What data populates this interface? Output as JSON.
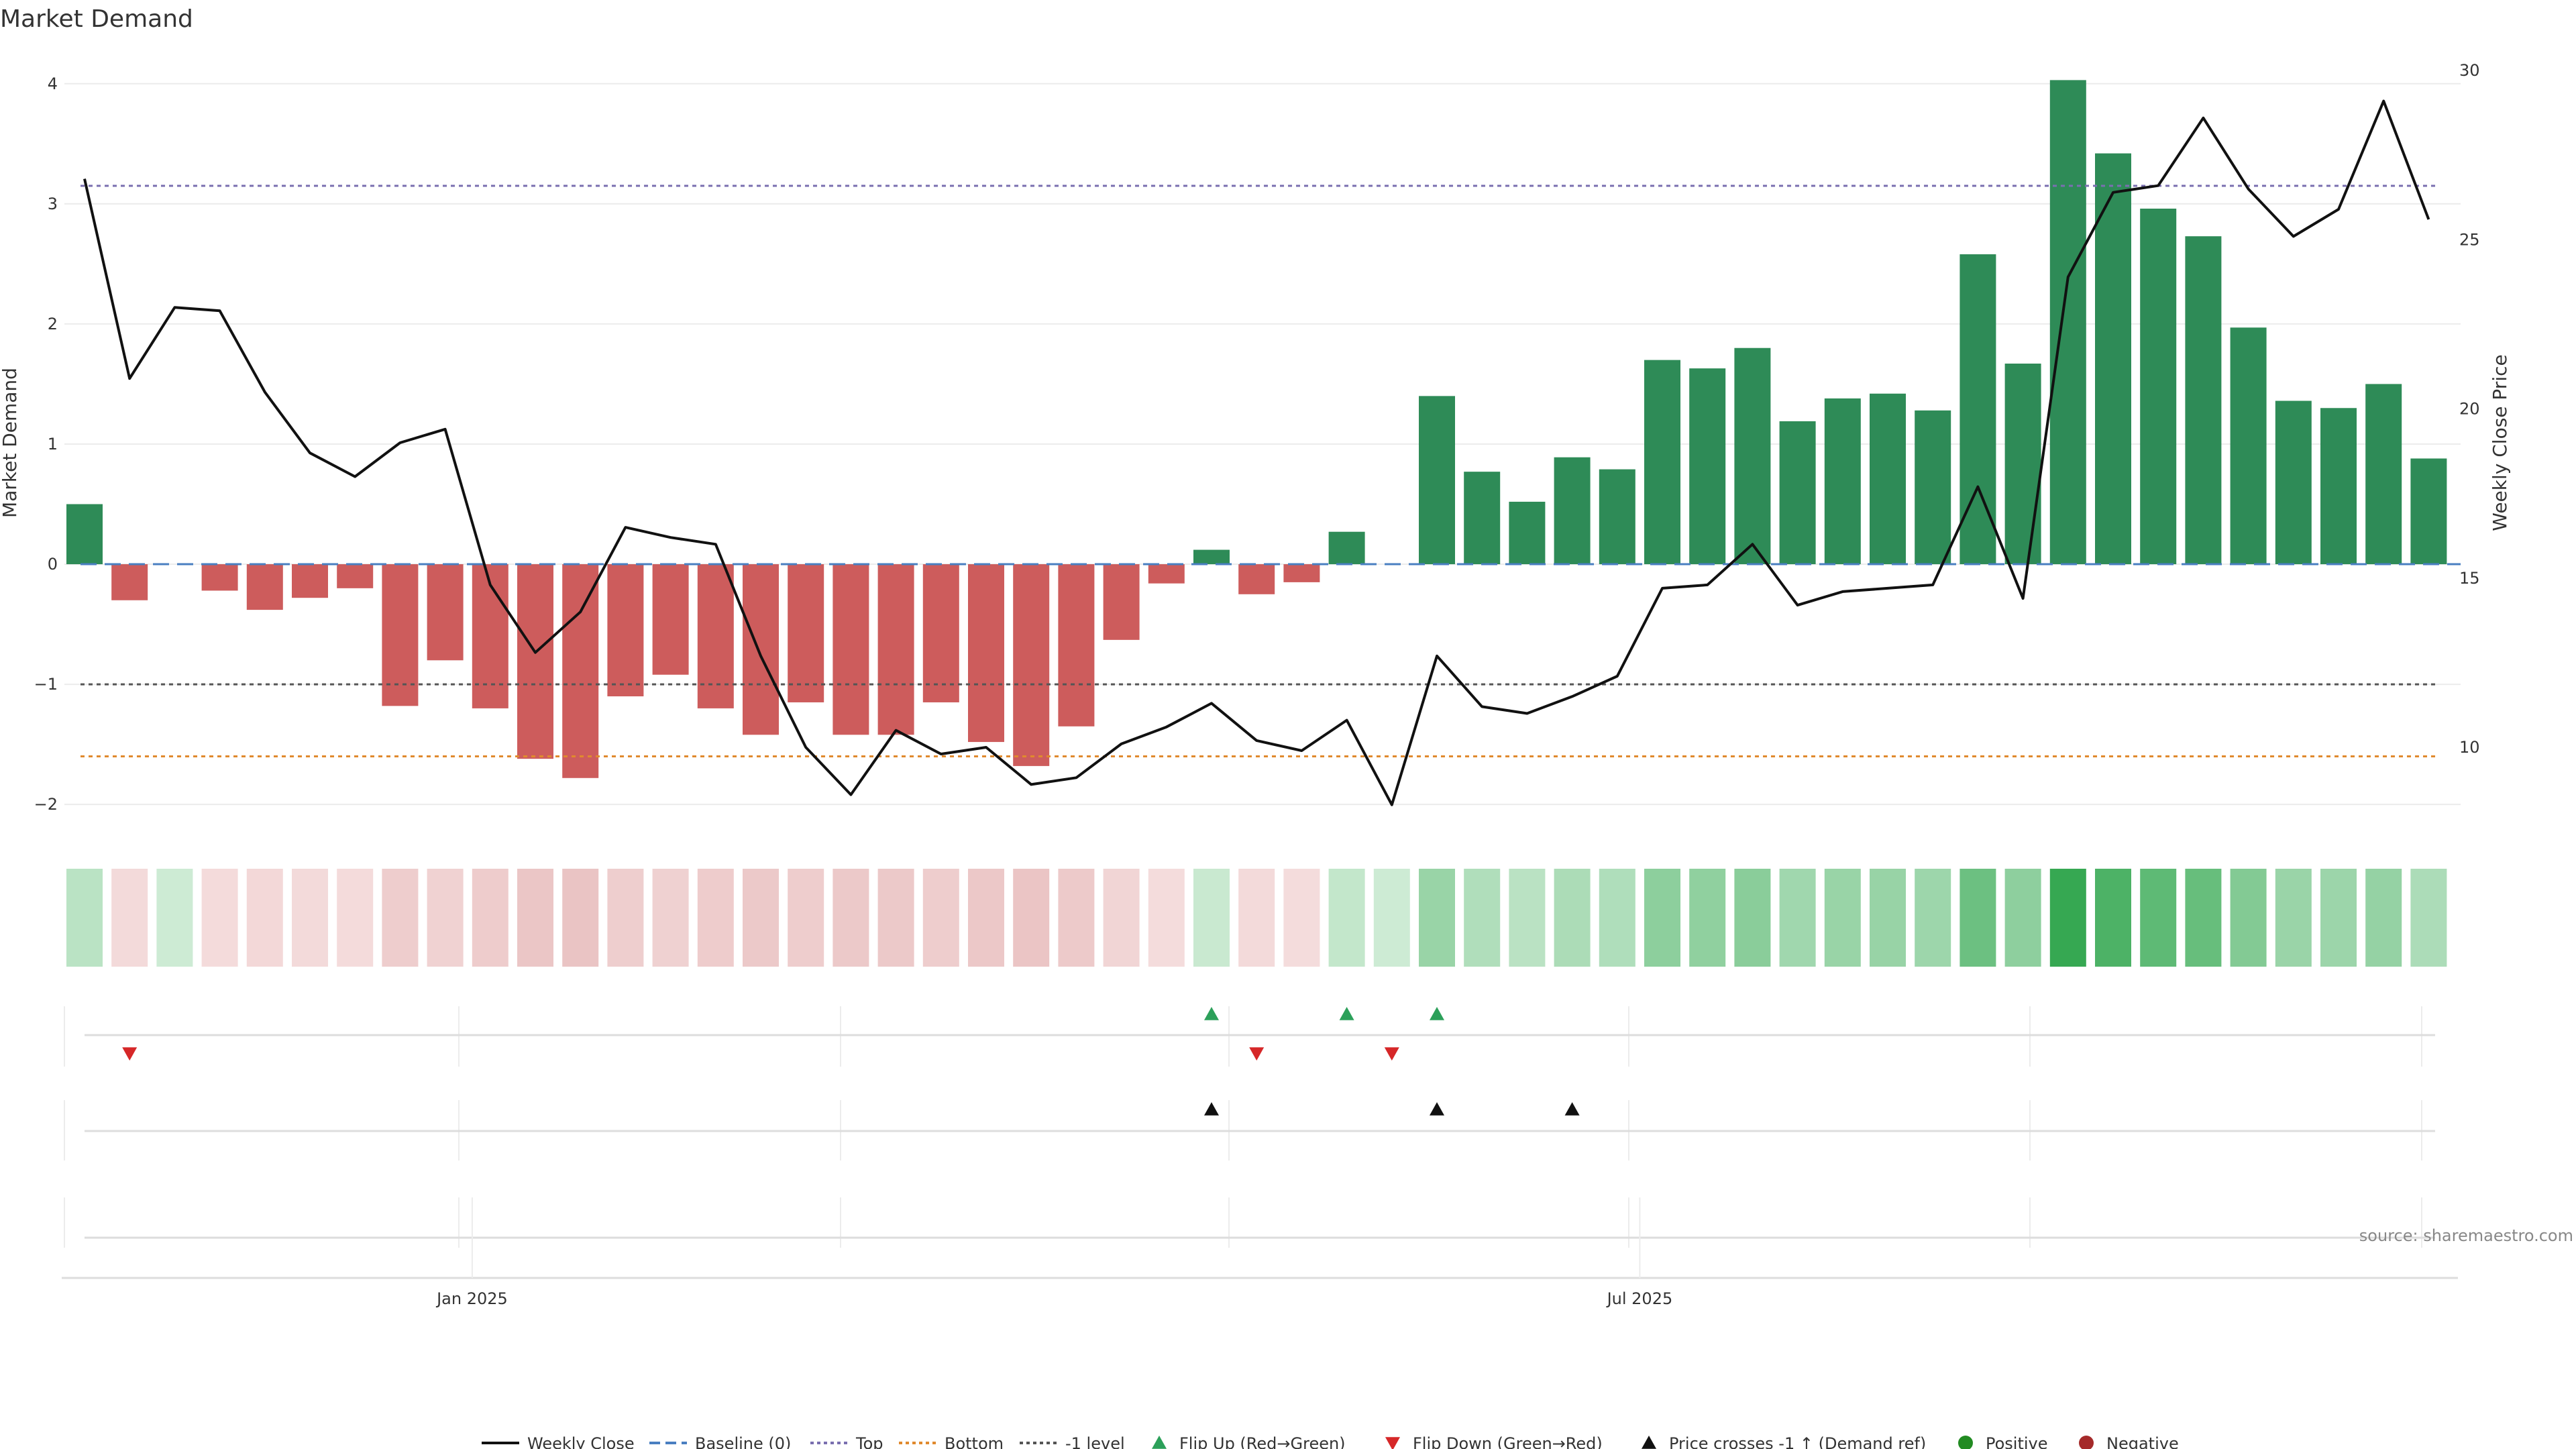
{
  "chart_data": {
    "type": "bar",
    "title": "Market Demand",
    "ylabel": "Market Demand",
    "y2label": "Weekly Close Price",
    "ylim": [
      -2.2,
      4.25
    ],
    "y2lim": [
      7.6,
      30.5
    ],
    "yticks": [
      -2,
      -1,
      0,
      1,
      2,
      3,
      4
    ],
    "yticklabels": [
      "−2",
      "−1",
      "0",
      "1",
      "2",
      "3",
      "4"
    ],
    "y2ticks": [
      10,
      15,
      20,
      25,
      30
    ],
    "xticklabels": [
      "Jan 2025",
      "Jul 2025"
    ],
    "xtick_weeks": [
      8.6,
      34.5
    ],
    "reference_lines": {
      "baseline": 0,
      "top": 3.15,
      "bottom": -1.6,
      "minus_one": -1
    },
    "demand": [
      0.5,
      -0.3,
      0,
      -0.22,
      -0.38,
      -0.28,
      -0.2,
      -1.18,
      -0.8,
      -1.2,
      -1.62,
      -1.78,
      -1.1,
      -0.92,
      -1.2,
      -1.42,
      -1.15,
      -1.42,
      -1.42,
      -1.15,
      -1.48,
      -1.68,
      -1.35,
      -0.63,
      -0.16,
      0.12,
      -0.25,
      -0.15,
      0.27,
      0,
      1.4,
      0.77,
      0.52,
      0.89,
      0.79,
      1.7,
      1.63,
      1.8,
      1.19,
      1.38,
      1.42,
      1.28,
      2.58,
      1.67,
      4.03,
      3.42,
      2.96,
      2.73,
      1.97,
      1.36,
      1.3,
      1.5,
      0.88
    ],
    "close": [
      26.8,
      20.9,
      23.0,
      22.9,
      20.5,
      18.7,
      18.0,
      19.0,
      19.4,
      14.8,
      12.8,
      14.0,
      16.5,
      16.2,
      16.0,
      12.7,
      10.0,
      8.6,
      10.5,
      9.8,
      10.0,
      8.9,
      9.1,
      10.1,
      10.6,
      11.3,
      10.2,
      9.9,
      10.8,
      8.3,
      12.7,
      11.2,
      11.0,
      11.5,
      12.1,
      14.7,
      14.8,
      16.0,
      14.2,
      14.6,
      14.7,
      14.8,
      17.7,
      14.4,
      23.9,
      26.4,
      26.6,
      28.6,
      26.5,
      25.1,
      25.9,
      29.1,
      25.6
    ],
    "flip_up_weeks": [
      25,
      28,
      30
    ],
    "flip_down_weeks": [
      1,
      26,
      29
    ],
    "price_cross_weeks": [
      25,
      30,
      33
    ],
    "legend": [
      "Weekly Close",
      "Baseline (0)",
      "Top",
      "Bottom",
      "-1 level",
      "Flip Up (Red→Green)",
      "Flip Down (Green→Red)",
      "Price crosses -1 ↑ (Demand ref)",
      "Positive",
      "Negative"
    ],
    "source": "source: sharemaestro.com"
  },
  "colors": {
    "positive": "#2e8b57",
    "negative": "#cd5c5c",
    "line": "#111111",
    "baseline": "#4a7fc1",
    "top": "#7a6fb0",
    "bottom": "#e08a2e",
    "minus_one": "#555555",
    "flip_up": "#2ca05a",
    "flip_down": "#d62728",
    "cross": "#111111",
    "legend_positive": "#228b22",
    "legend_negative": "#a52a2a"
  }
}
